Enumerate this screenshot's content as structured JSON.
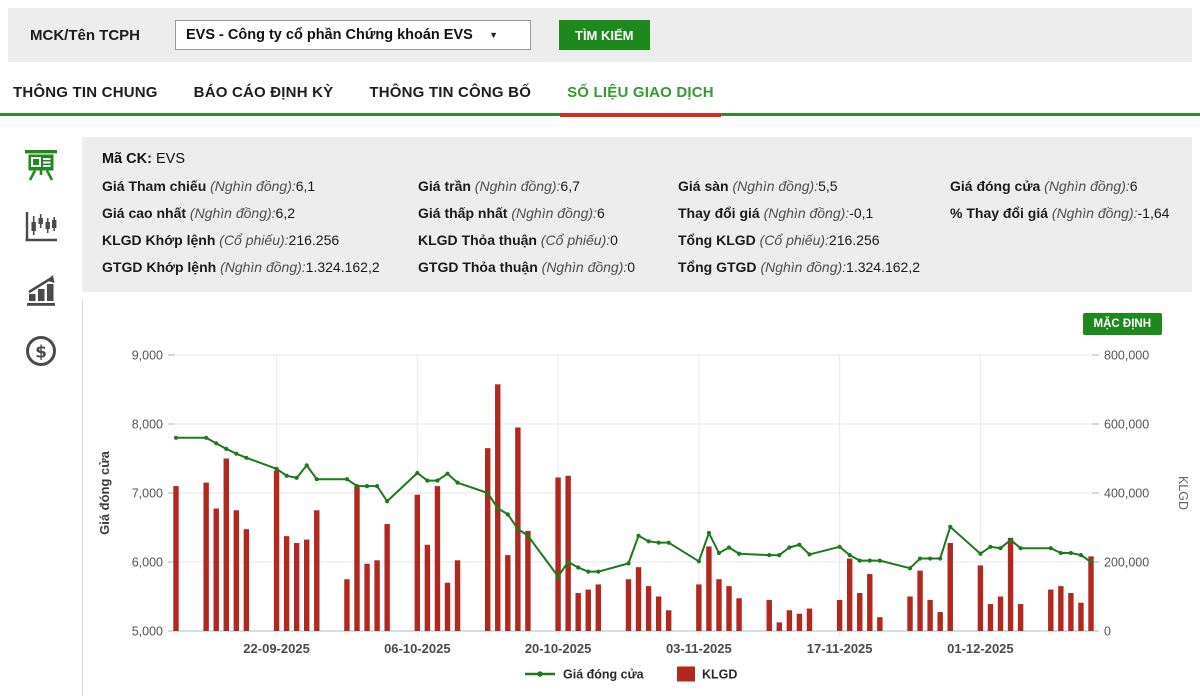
{
  "search_bar": {
    "label": "MCK/Tên TCPH",
    "select_value": "EVS - Công ty cổ phần Chứng khoán EVS",
    "search_button": "TÌM KIẾM"
  },
  "tabs": [
    {
      "label": "THÔNG TIN CHUNG",
      "active": false
    },
    {
      "label": "BÁO CÁO ĐỊNH KỲ",
      "active": false
    },
    {
      "label": "THÔNG TIN CÔNG BỐ",
      "active": false
    },
    {
      "label": "SỐ LIỆU GIAO DỊCH",
      "active": true
    }
  ],
  "sidebar": {
    "icons": [
      "presentation-chart",
      "candlestick-chart",
      "bar-chart-growth",
      "dollar-circle"
    ]
  },
  "info_panel": {
    "ma_ck_label": "Mã CK:",
    "ma_ck_value": "EVS",
    "rows": [
      [
        {
          "label": "Giá Tham chiếu",
          "unit": "(Nghìn đồng):",
          "value": "6,1"
        },
        {
          "label": "Giá trần",
          "unit": "(Nghìn đồng):",
          "value": "6,7"
        },
        {
          "label": "Giá sàn",
          "unit": "(Nghìn đồng):",
          "value": "5,5"
        },
        {
          "label": "Giá đóng cửa",
          "unit": "(Nghìn đồng):",
          "value": "6"
        }
      ],
      [
        {
          "label": "Giá cao nhất",
          "unit": "(Nghìn đồng):",
          "value": "6,2"
        },
        {
          "label": "Giá thấp nhất",
          "unit": "(Nghìn đồng):",
          "value": "6"
        },
        {
          "label": "Thay đổi giá",
          "unit": "(Nghìn đồng):",
          "value": "-0,1"
        },
        {
          "label": "% Thay đổi giá",
          "unit": "(Nghìn đồng):",
          "value": "-1,64"
        }
      ],
      [
        {
          "label": "KLGD Khớp lệnh",
          "unit": "(Cổ phiếu):",
          "value": "216.256"
        },
        {
          "label": "KLGD Thỏa thuận",
          "unit": "(Cổ phiếu):",
          "value": "0"
        },
        {
          "label": "Tổng KLGD",
          "unit": "(Cổ phiếu):",
          "value": "216.256"
        },
        {
          "label": "",
          "unit": "",
          "value": ""
        }
      ],
      [
        {
          "label": "GTGD Khớp lệnh",
          "unit": "(Nghìn đồng):",
          "value": "1.324.162,2"
        },
        {
          "label": "GTGD Thỏa thuận",
          "unit": "(Nghìn đồng):",
          "value": "0"
        },
        {
          "label": "Tổng GTGD",
          "unit": "(Nghìn đồng):",
          "value": "1.324.162,2"
        },
        {
          "label": "",
          "unit": "",
          "value": ""
        }
      ]
    ]
  },
  "chart_panel": {
    "default_button": "MẶC ĐỊNH"
  },
  "chart_data": {
    "type": "line",
    "combo": "line+bar",
    "x": [
      "12-09-2025",
      "15-09-2025",
      "16-09-2025",
      "17-09-2025",
      "18-09-2025",
      "19-09-2025",
      "22-09-2025",
      "23-09-2025",
      "24-09-2025",
      "25-09-2025",
      "26-09-2025",
      "29-09-2025",
      "30-09-2025",
      "01-10-2025",
      "02-10-2025",
      "03-10-2025",
      "06-10-2025",
      "07-10-2025",
      "08-10-2025",
      "09-10-2025",
      "10-10-2025",
      "13-10-2025",
      "14-10-2025",
      "15-10-2025",
      "16-10-2025",
      "17-10-2025",
      "20-10-2025",
      "21-10-2025",
      "22-10-2025",
      "23-10-2025",
      "24-10-2025",
      "27-10-2025",
      "28-10-2025",
      "29-10-2025",
      "30-10-2025",
      "31-10-2025",
      "03-11-2025",
      "04-11-2025",
      "05-11-2025",
      "06-11-2025",
      "07-11-2025",
      "10-11-2025",
      "11-11-2025",
      "12-11-2025",
      "13-11-2025",
      "14-11-2025",
      "17-11-2025",
      "18-11-2025",
      "19-11-2025",
      "20-11-2025",
      "21-11-2025",
      "24-11-2025",
      "25-11-2025",
      "26-11-2025",
      "27-11-2025",
      "28-11-2025",
      "01-12-2025",
      "02-12-2025",
      "03-12-2025",
      "04-12-2025",
      "05-12-2025",
      "08-12-2025",
      "09-12-2025",
      "10-12-2025",
      "11-12-2025",
      "12-12-2025"
    ],
    "series": [
      {
        "name": "Giá đóng cửa",
        "type": "line",
        "axis": "left",
        "color": "#1b7a1b",
        "values": [
          7800,
          7800,
          7720,
          7640,
          7570,
          7510,
          7350,
          7250,
          7220,
          7400,
          7200,
          7200,
          7100,
          7100,
          7100,
          6880,
          7290,
          7180,
          7180,
          7280,
          7150,
          7000,
          6780,
          6690,
          6480,
          6380,
          5790,
          6000,
          5920,
          5860,
          5860,
          5980,
          6380,
          6300,
          6280,
          6280,
          6010,
          6420,
          6130,
          6210,
          6120,
          6100,
          6100,
          6210,
          6250,
          6110,
          6220,
          6100,
          6020,
          6020,
          6020,
          5910,
          6050,
          6050,
          6050,
          6510,
          6120,
          6220,
          6200,
          6320,
          6200,
          6200,
          6130,
          6130,
          6100,
          6000
        ]
      },
      {
        "name": "KLGD",
        "type": "bar",
        "axis": "right",
        "color": "#b2271e",
        "values": [
          420000,
          430000,
          355000,
          500000,
          350000,
          295000,
          465000,
          275000,
          255000,
          265000,
          350000,
          150000,
          420000,
          195000,
          205000,
          310000,
          395000,
          250000,
          420000,
          140000,
          205000,
          530000,
          715000,
          220000,
          590000,
          290000,
          445000,
          450000,
          110000,
          120000,
          135000,
          150000,
          185000,
          130000,
          100000,
          60000,
          135000,
          245000,
          150000,
          130000,
          95000,
          90000,
          25000,
          60000,
          50000,
          65000,
          90000,
          210000,
          110000,
          165000,
          40000,
          100000,
          175000,
          90000,
          55000,
          255000,
          190000,
          78000,
          100000,
          270000,
          78000,
          120000,
          130000,
          110000,
          82000,
          216256
        ]
      }
    ],
    "left_axis": {
      "title": "Giá đóng cửa",
      "min": 5000,
      "max": 9000,
      "ticks": [
        "5,000",
        "6,000",
        "7,000",
        "8,000",
        "9,000"
      ]
    },
    "right_axis": {
      "title": "KLGD",
      "min": 0,
      "max": 800000,
      "ticks": [
        "0",
        "200,000",
        "400,000",
        "600,000",
        "800,000"
      ]
    },
    "x_tick_labels": [
      "22-09-2025",
      "06-10-2025",
      "20-10-2025",
      "03-11-2025",
      "17-11-2025",
      "01-12-2025"
    ],
    "legend": [
      "Giá đóng cửa",
      "KLGD"
    ],
    "grid": true,
    "legend_position": "bottom"
  }
}
